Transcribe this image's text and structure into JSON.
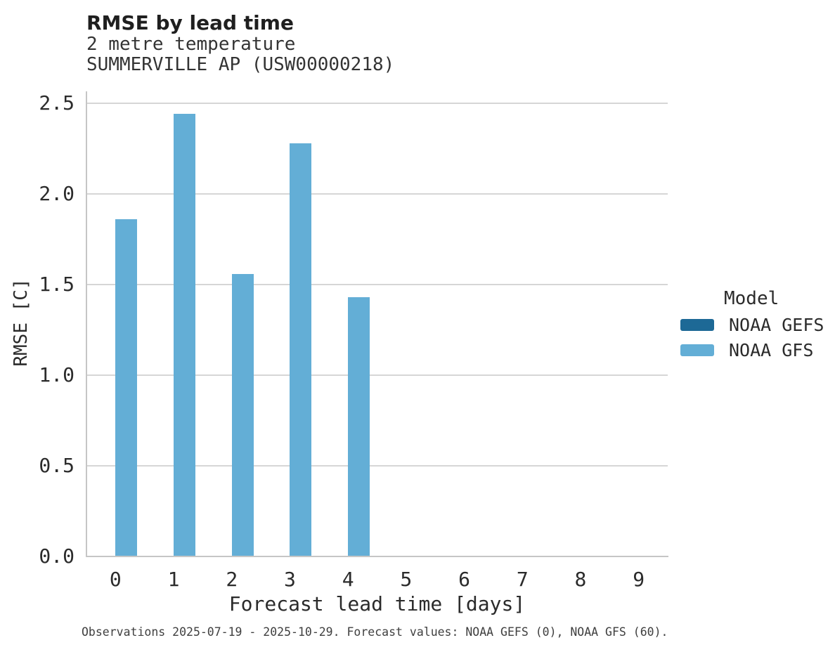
{
  "header": {
    "title": "RMSE by lead time",
    "subtitle_line1": "2 metre temperature",
    "subtitle_line2": "SUMMERVILLE AP (USW00000218)"
  },
  "chart_data": {
    "type": "bar",
    "title": "RMSE by lead time",
    "subtitle": [
      "2 metre temperature",
      "SUMMERVILLE AP (USW00000218)"
    ],
    "xlabel": "Forecast lead time [days]",
    "ylabel": "RMSE [C]",
    "categories": [
      "0",
      "1",
      "2",
      "3",
      "4",
      "5",
      "6",
      "7",
      "8",
      "9"
    ],
    "series": [
      {
        "name": "NOAA GEFS",
        "color": "#1d6996",
        "values": []
      },
      {
        "name": "NOAA GFS",
        "color": "#63aed6",
        "values": [
          1.86,
          2.44,
          1.56,
          2.28,
          1.43
        ]
      }
    ],
    "ylim": [
      0,
      2.57
    ],
    "y_ticks": [
      0.0,
      0.5,
      1.0,
      1.5,
      2.0,
      2.5
    ],
    "y_tick_labels": [
      "0.0",
      "0.5",
      "1.0",
      "1.5",
      "2.0",
      "2.5"
    ],
    "grid": true,
    "legend_title": "Model",
    "legend_position": "right"
  },
  "footer": {
    "caption": "Observations 2025-07-19 - 2025-10-29. Forecast values: NOAA GEFS (0), NOAA GFS (60)."
  },
  "colors": {
    "bar_gfs": "#63aed6",
    "bar_gefs": "#1d6996",
    "gridline": "#d6d6d6",
    "spine": "#c6c6c6",
    "title_text": "#1f1f1f",
    "tick_text": "#2b2b2b",
    "caption_text": "#3f3f3f"
  }
}
